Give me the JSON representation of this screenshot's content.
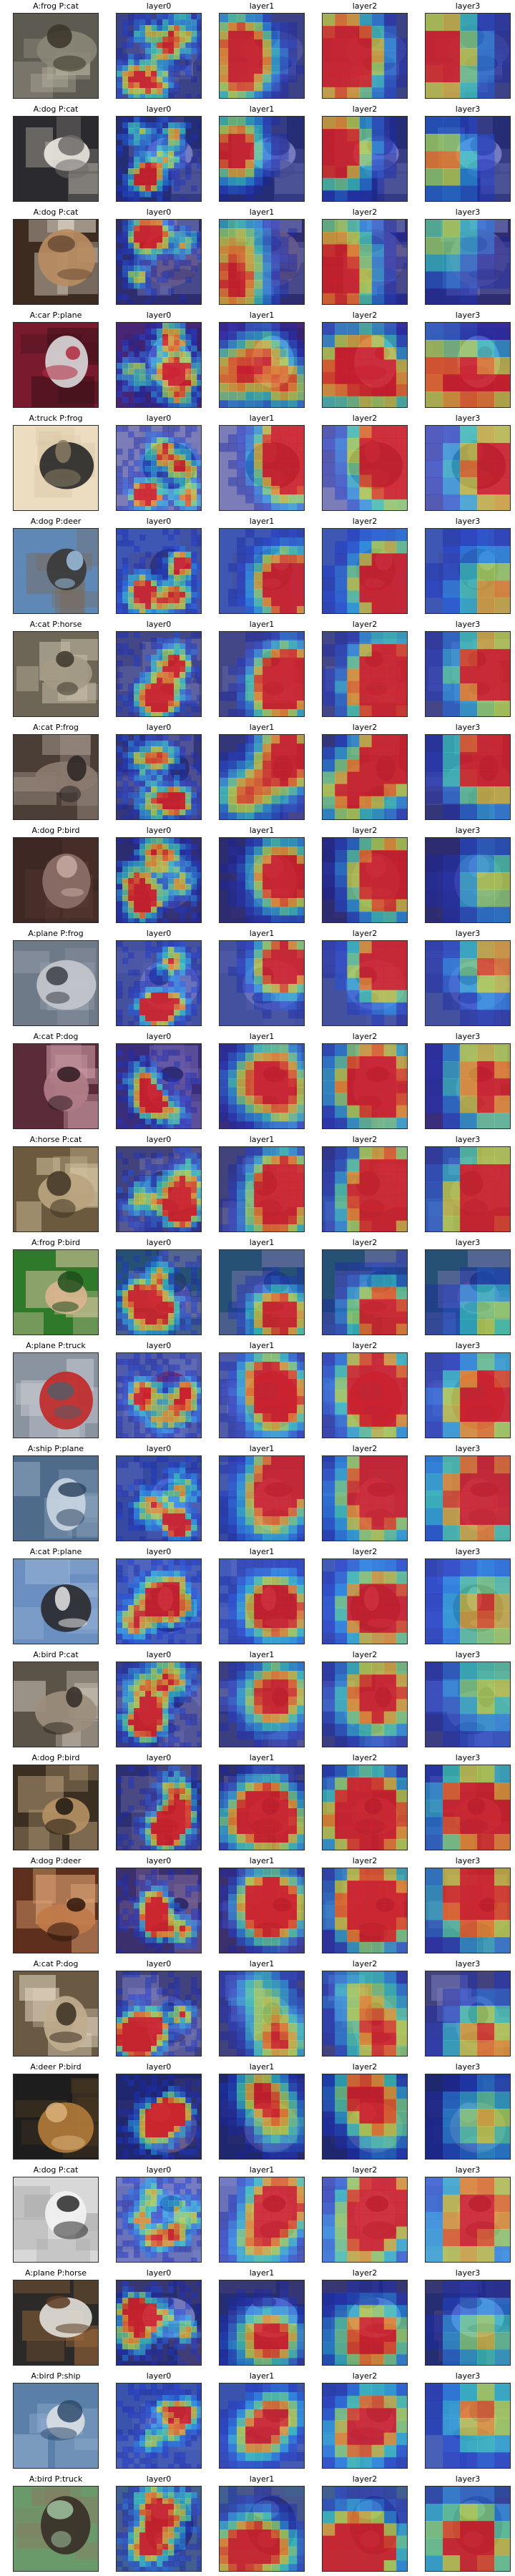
{
  "column_headers": [
    "layer0",
    "layer1",
    "layer2",
    "layer3"
  ],
  "rows": [
    {
      "label": "A:frog P:cat",
      "photo": "dark frog silhouette on gray background"
    },
    {
      "label": "A:dog P:cat",
      "photo": "white dog on dark background"
    },
    {
      "label": "A:dog P:cat",
      "photo": "brown dog lying down"
    },
    {
      "label": "A:car P:plane",
      "photo": "red car close-up"
    },
    {
      "label": "A:truck P:frog",
      "photo": "dark truck in frame"
    },
    {
      "label": "A:dog P:deer",
      "photo": "dog against blue sky"
    },
    {
      "label": "A:cat P:horse",
      "photo": "cat lying on ground"
    },
    {
      "label": "A:cat P:frog",
      "photo": "striped cat"
    },
    {
      "label": "A:dog P:bird",
      "photo": "dog face close-up"
    },
    {
      "label": "A:plane P:frog",
      "photo": "plane on runway"
    },
    {
      "label": "A:cat P:dog",
      "photo": "cat face on red background"
    },
    {
      "label": "A:horse P:cat",
      "photo": "horse lying down"
    },
    {
      "label": "A:frog P:bird",
      "photo": "frog on green background"
    },
    {
      "label": "A:plane P:truck",
      "photo": "red plane on tarmac"
    },
    {
      "label": "A:ship P:plane",
      "photo": "ship on blue water"
    },
    {
      "label": "A:cat P:plane",
      "photo": "cat against sky"
    },
    {
      "label": "A:bird P:cat",
      "photo": "bird on ground"
    },
    {
      "label": "A:dog P:bird",
      "photo": "dog lying on ground"
    },
    {
      "label": "A:dog P:deer",
      "photo": "dog face brown background"
    },
    {
      "label": "A:cat P:dog",
      "photo": "tabby cat sitting"
    },
    {
      "label": "A:deer P:bird",
      "photo": "deer on dark background"
    },
    {
      "label": "A:dog P:cat",
      "photo": "white dog on white background"
    },
    {
      "label": "A:plane P:horse",
      "photo": "plane against dark background"
    },
    {
      "label": "A:bird P:ship",
      "photo": "white bird on blue"
    },
    {
      "label": "A:bird P:truck",
      "photo": "ostrich on green field"
    }
  ],
  "colors": {
    "background": "#ffffff",
    "title_text": "#000000",
    "heatmap_low": "#1a1a8c",
    "heatmap_mid_low": "#2a6cff",
    "heatmap_mid": "#3fe0d0",
    "heatmap_mid_high": "#e0e040",
    "heatmap_high": "#e02020"
  }
}
